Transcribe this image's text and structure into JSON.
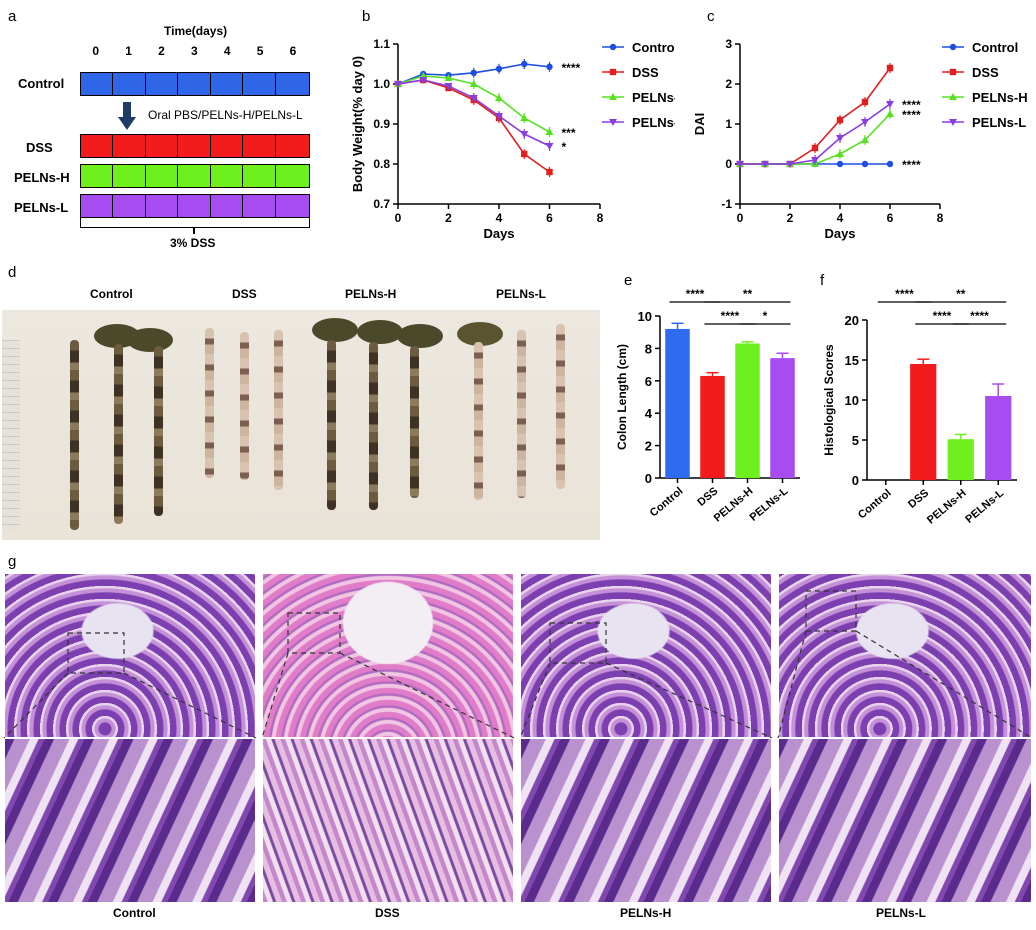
{
  "panels": {
    "a": {
      "letter": "a",
      "time_title": "Time(days)",
      "days": [
        "0",
        "1",
        "2",
        "3",
        "4",
        "5",
        "6"
      ],
      "rows": [
        {
          "label": "Control",
          "color": "#2f66e8"
        },
        {
          "label": "DSS",
          "color": "#f21c1c"
        },
        {
          "label": "PELNs-H",
          "color": "#6ef01e"
        },
        {
          "label": "PELNs-L",
          "color": "#a64cf0"
        }
      ],
      "arrow_label": "Oral PBS/PELNs-H/PELNs-L",
      "dss_label": "3%  DSS"
    },
    "d": {
      "letter": "d",
      "groups": [
        "Control",
        "DSS",
        "PELNs-H",
        "PELNs-L"
      ]
    },
    "g": {
      "letter": "g",
      "groups": [
        "Control",
        "DSS",
        "PELNs-H",
        "PELNs-L"
      ]
    }
  },
  "chart_data": [
    {
      "id": "b",
      "letter": "b",
      "type": "line",
      "ylabel": "Body Weight(% day 0)",
      "xlabel": "Days",
      "xlim": [
        0,
        8
      ],
      "ylim": [
        0.7,
        1.1
      ],
      "xticks": [
        "0",
        "2",
        "4",
        "6",
        "8"
      ],
      "yticks": [
        "0.7",
        "0.8",
        "0.9",
        "1.0",
        "1.1"
      ],
      "x": [
        0,
        1,
        2,
        3,
        4,
        5,
        6
      ],
      "legend": "right",
      "series": [
        {
          "name": "Control",
          "color": "#1f4fe0",
          "marker": "circle",
          "values": [
            1.0,
            1.025,
            1.022,
            1.028,
            1.038,
            1.05,
            1.043
          ],
          "sig": "****"
        },
        {
          "name": "DSS",
          "color": "#e01f1f",
          "marker": "square",
          "values": [
            1.0,
            1.01,
            0.99,
            0.96,
            0.915,
            0.825,
            0.78
          ],
          "sig": ""
        },
        {
          "name": "PELNs-H",
          "color": "#55e11f",
          "marker": "triangle-up",
          "values": [
            1.0,
            1.02,
            1.015,
            1.0,
            0.965,
            0.915,
            0.88
          ],
          "sig": "***"
        },
        {
          "name": "PELNs-L",
          "color": "#8a3ee0",
          "marker": "triangle-down",
          "values": [
            1.0,
            1.01,
            0.995,
            0.965,
            0.92,
            0.875,
            0.845
          ],
          "sig": "*"
        }
      ]
    },
    {
      "id": "c",
      "letter": "c",
      "type": "line",
      "ylabel": "DAI",
      "xlabel": "Days",
      "xlim": [
        0,
        8
      ],
      "ylim": [
        -1,
        3
      ],
      "xticks": [
        "0",
        "2",
        "4",
        "6",
        "8"
      ],
      "yticks": [
        "-1",
        "0",
        "1",
        "2",
        "3"
      ],
      "x": [
        0,
        1,
        2,
        3,
        4,
        5,
        6
      ],
      "legend": "right",
      "series": [
        {
          "name": "Control",
          "color": "#1f4fe0",
          "marker": "circle",
          "values": [
            0,
            0,
            0,
            0,
            0,
            0,
            0
          ],
          "sig": "****"
        },
        {
          "name": "DSS",
          "color": "#e01f1f",
          "marker": "square",
          "values": [
            0,
            0,
            0,
            0.4,
            1.1,
            1.55,
            2.4
          ],
          "sig": ""
        },
        {
          "name": "PELNs-H",
          "color": "#55e11f",
          "marker": "triangle-up",
          "values": [
            0,
            0,
            0,
            0,
            0.25,
            0.6,
            1.25
          ],
          "sig": "****"
        },
        {
          "name": "PELNs-L",
          "color": "#8a3ee0",
          "marker": "triangle-down",
          "values": [
            0,
            0,
            0,
            0.1,
            0.65,
            1.05,
            1.5
          ],
          "sig": "****"
        }
      ]
    },
    {
      "id": "e",
      "letter": "e",
      "type": "bar",
      "ylabel": "Colon Length (cm)",
      "categories": [
        "Control",
        "DSS",
        "PELNs-H",
        "PELNs-L"
      ],
      "values": [
        9.2,
        6.3,
        8.3,
        7.4
      ],
      "errors": [
        0.35,
        0.2,
        0.1,
        0.3
      ],
      "colors": [
        "#2d6bf0",
        "#f21c1c",
        "#6ef01e",
        "#a64cf0"
      ],
      "ylim": [
        0,
        10
      ],
      "yticks": [
        "0",
        "2",
        "4",
        "6",
        "8",
        "10"
      ],
      "sig_bars": [
        {
          "from": 0,
          "to": 1,
          "label": "****",
          "level": 0
        },
        {
          "from": 1,
          "to": 3,
          "label": "**",
          "level": 0
        },
        {
          "from": 1,
          "to": 2,
          "label": "****",
          "level": 1
        },
        {
          "from": 2,
          "to": 3,
          "label": "*",
          "level": 1
        }
      ]
    },
    {
      "id": "f",
      "letter": "f",
      "type": "bar",
      "ylabel": "Histological Scores",
      "categories": [
        "Control",
        "DSS",
        "PELNs-H",
        "PELNs-L"
      ],
      "values": [
        0,
        14.5,
        5.1,
        10.5
      ],
      "errors": [
        0,
        0.6,
        0.6,
        1.5
      ],
      "colors": [
        "#2d6bf0",
        "#f21c1c",
        "#6ef01e",
        "#a64cf0"
      ],
      "ylim": [
        0,
        20
      ],
      "yticks": [
        "0",
        "5",
        "10",
        "15",
        "20"
      ],
      "sig_bars": [
        {
          "from": 0,
          "to": 1,
          "label": "****",
          "level": 0
        },
        {
          "from": 1,
          "to": 3,
          "label": "**",
          "level": 0
        },
        {
          "from": 1,
          "to": 2,
          "label": "****",
          "level": 1
        },
        {
          "from": 2,
          "to": 3,
          "label": "****",
          "level": 1
        }
      ]
    }
  ]
}
